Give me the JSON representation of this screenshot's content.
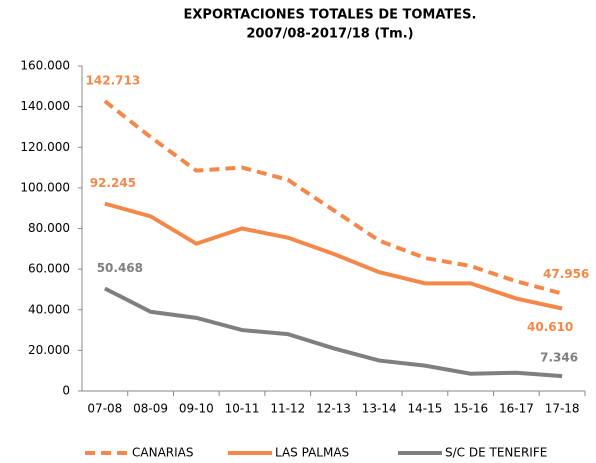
{
  "chart_data": {
    "type": "line",
    "title": "EXPORTACIONES TOTALES DE TOMATES.",
    "subtitle": "2007/08-2017/18 (Tm.)",
    "categories": [
      "07-08",
      "08-09",
      "09-10",
      "10-11",
      "11-12",
      "12-13",
      "13-14",
      "14-15",
      "15-16",
      "16-17",
      "17-18"
    ],
    "series": [
      {
        "name": "CANARIAS",
        "color": "#f4884a",
        "style": "dashed",
        "values": [
          142713,
          125000,
          108500,
          110000,
          104000,
          89000,
          74000,
          65500,
          61500,
          54000,
          47956
        ],
        "value_labels": [
          "142.713",
          null,
          null,
          null,
          null,
          null,
          null,
          null,
          null,
          null,
          "47.956"
        ]
      },
      {
        "name": "LAS PALMAS",
        "color": "#f4884a",
        "style": "solid",
        "values": [
          92245,
          86000,
          72500,
          80000,
          75500,
          67500,
          58500,
          53000,
          53000,
          45500,
          40610
        ],
        "value_labels": [
          "92.245",
          null,
          null,
          null,
          null,
          null,
          null,
          null,
          null,
          null,
          "40.610"
        ]
      },
      {
        "name": "S/C DE TENERIFE",
        "color": "#7f7f7f",
        "style": "solid",
        "values": [
          50468,
          39000,
          36000,
          30000,
          28000,
          21000,
          15000,
          12500,
          8500,
          9000,
          7346
        ],
        "value_labels": [
          "50.468",
          null,
          null,
          null,
          null,
          null,
          null,
          null,
          null,
          null,
          "7.346"
        ]
      }
    ],
    "ylim": [
      0,
      160000
    ],
    "yticks": [
      0,
      {
        "value": 20000,
        "label": "20.000"
      },
      {
        "value": 40000,
        "label": "40.000"
      },
      {
        "value": 60000,
        "label": "60.000"
      },
      {
        "value": 80000,
        "label": "80.000"
      },
      {
        "value": 100000,
        "label": "100.000"
      },
      {
        "value": 120000,
        "label": "120.000"
      },
      {
        "value": 140000,
        "label": "140.000"
      },
      {
        "value": 160000,
        "label": "160.000"
      }
    ],
    "legend": "bottom"
  }
}
